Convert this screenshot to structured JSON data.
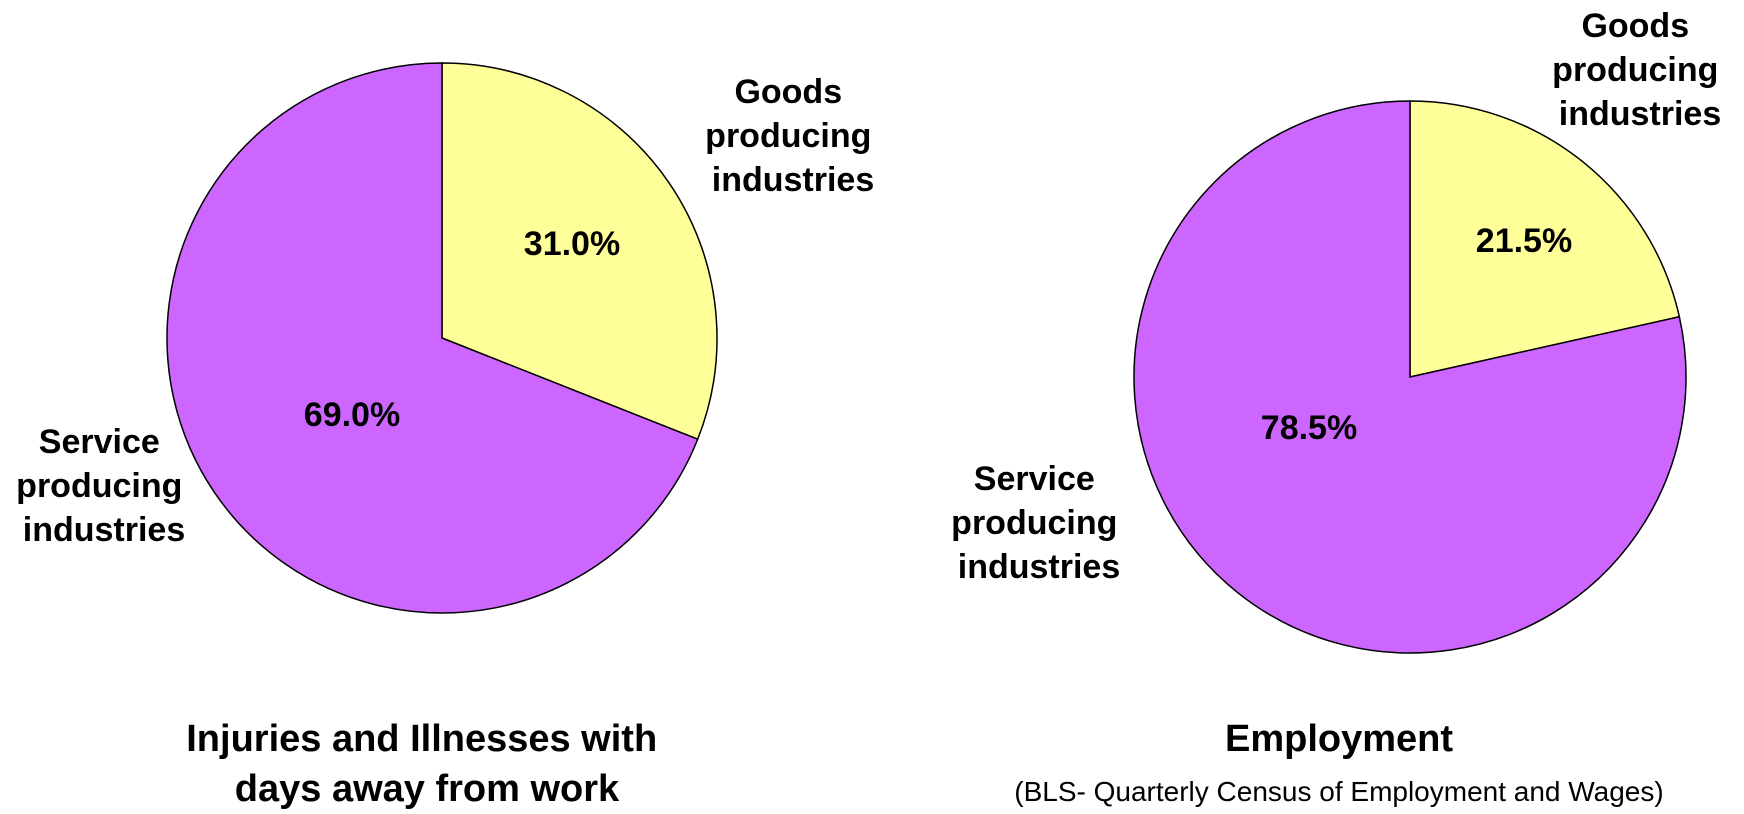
{
  "colors": {
    "goods": "#ffff99",
    "service": "#cc66ff",
    "outline": "#000000"
  },
  "chart_data": [
    {
      "type": "pie",
      "title_lines": [
        "Injuries and Illnesses with",
        "days away from work"
      ],
      "subtitle": "",
      "slices": [
        {
          "label_lines": [
            "Goods",
            "producing",
            "industries"
          ],
          "value": 31.0,
          "value_label": "31.0%",
          "color": "#ffff99"
        },
        {
          "label_lines": [
            "Service",
            "producing",
            "industries"
          ],
          "value": 69.0,
          "value_label": "69.0%",
          "color": "#cc66ff"
        }
      ]
    },
    {
      "type": "pie",
      "title_lines": [
        "Employment"
      ],
      "subtitle": "(BLS- Quarterly Census of Employment and Wages)",
      "slices": [
        {
          "label_lines": [
            "Goods",
            "producing",
            "industries"
          ],
          "value": 21.5,
          "value_label": "21.5%",
          "color": "#ffff99"
        },
        {
          "label_lines": [
            "Service",
            "producing",
            "industries"
          ],
          "value": 78.5,
          "value_label": "78.5%",
          "color": "#cc66ff"
        }
      ]
    }
  ]
}
